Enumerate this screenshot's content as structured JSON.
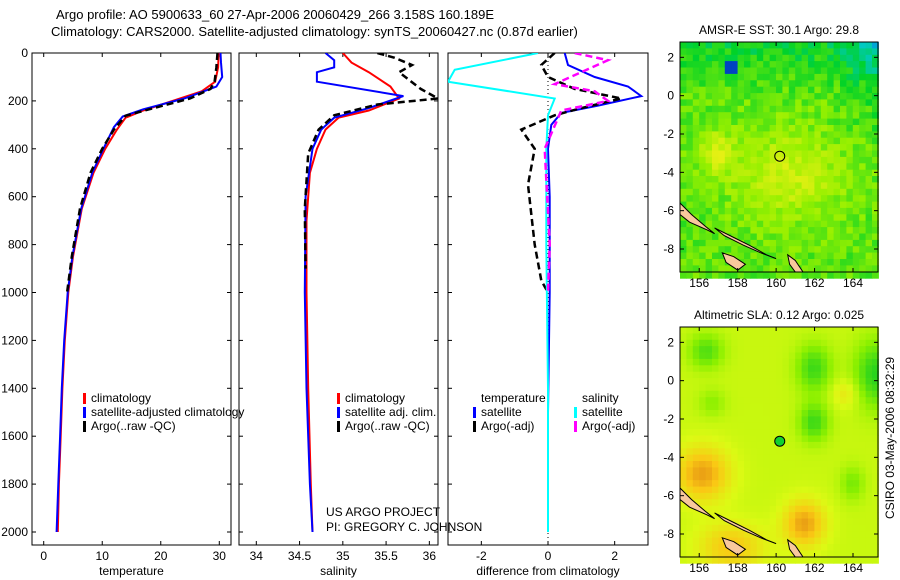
{
  "header": {
    "line1": "Argo profile: AO 5900633_60 27-Apr-2006 20060429_266 3.158S 160.189E",
    "line2": "Climatology: CARS2000. Satellite-adjusted climatology: synTS_20060427.nc (0.87d earlier)"
  },
  "credits": {
    "project": "US ARGO PROJECT",
    "pi": "PI: GREGORY C. JOHNSON",
    "stamp": "CSIRO 03-May-2006 08:32:29"
  },
  "colors": {
    "climatology": "#ff0000",
    "satellite": "#0000ff",
    "argo": "#000000",
    "sal_satellite": "#00ffff",
    "sal_argo": "#ff00ff",
    "land": "#f8c89c"
  },
  "chart_data": [
    {
      "type": "line",
      "name": "temperature-profile",
      "xlabel": "temperature",
      "ylabel": "",
      "xlim": [
        -2,
        32
      ],
      "ylim": [
        2100,
        0
      ],
      "xticks": [
        "0",
        "10",
        "20",
        "30"
      ],
      "yticks": [
        "0",
        "200",
        "400",
        "600",
        "800",
        "1000",
        "1200",
        "1400",
        "1600",
        "1800",
        "2000"
      ],
      "legend": [
        "climatology",
        "satellite-adjusted climatology",
        "Argo(..raw -QC)"
      ],
      "series": [
        {
          "name": "climatology",
          "color": "#ff0000",
          "x": [
            29.9,
            29.8,
            29.3,
            27,
            22,
            17,
            14,
            12.5,
            10.5,
            8.5,
            6.5,
            5,
            4.2,
            3.6,
            3.2,
            2.9,
            2.6,
            2.4
          ],
          "y": [
            0,
            60,
            120,
            160,
            200,
            240,
            270,
            320,
            400,
            500,
            650,
            850,
            1000,
            1200,
            1400,
            1600,
            1800,
            2000
          ]
        },
        {
          "name": "satellite-adjusted climatology",
          "color": "#0000ff",
          "x": [
            30.2,
            30.3,
            30.5,
            29.5,
            24,
            17,
            13.5,
            12,
            10.2,
            8.3,
            6.4,
            4.9,
            4.1,
            3.5,
            3.1,
            2.8,
            2.5,
            2.2
          ],
          "y": [
            0,
            40,
            100,
            140,
            190,
            235,
            265,
            310,
            400,
            500,
            650,
            850,
            1000,
            1200,
            1400,
            1600,
            1800,
            2000
          ]
        },
        {
          "name": "Argo(..raw -QC)",
          "color": "#000000",
          "x": [
            29.7,
            29.5,
            29.2,
            28.5,
            25,
            18,
            14,
            12,
            10,
            8,
            6.2,
            4.8,
            4.0
          ],
          "y": [
            0,
            60,
            120,
            150,
            190,
            235,
            262,
            320,
            400,
            500,
            650,
            850,
            1000
          ]
        }
      ]
    },
    {
      "type": "line",
      "name": "salinity-profile",
      "xlabel": "salinity",
      "xlim": [
        33.8,
        36.1
      ],
      "ylim": [
        2100,
        0
      ],
      "xticks": [
        "34",
        "34.5",
        "35",
        "35.5",
        "36"
      ],
      "legend": [
        "climatology",
        "satellite adj. clim.",
        "Argo(..raw -QC)"
      ],
      "series": [
        {
          "name": "climatology",
          "color": "#ff0000",
          "x": [
            35.0,
            35.1,
            35.3,
            35.55,
            35.65,
            35.3,
            34.95,
            34.8,
            34.7,
            34.62,
            34.58,
            34.58,
            34.6,
            34.63,
            34.65
          ],
          "y": [
            0,
            40,
            80,
            140,
            190,
            240,
            270,
            320,
            400,
            500,
            700,
            1000,
            1400,
            1800,
            2000
          ]
        },
        {
          "name": "satellite adj. clim.",
          "color": "#0000ff",
          "x": [
            34.8,
            34.9,
            34.9,
            34.7,
            34.7,
            35.7,
            35.3,
            34.9,
            34.75,
            34.65,
            34.57,
            34.56,
            34.58,
            34.62,
            34.65
          ],
          "y": [
            0,
            30,
            60,
            80,
            120,
            180,
            230,
            270,
            320,
            400,
            600,
            1000,
            1400,
            1800,
            2000
          ]
        },
        {
          "name": "Argo(..raw -QC)",
          "color": "#000000",
          "x": [
            35.4,
            35.6,
            35.8,
            35.65,
            35.9,
            36.1,
            35.4,
            34.9,
            34.72,
            34.6,
            34.56,
            34.57
          ],
          "y": [
            0,
            20,
            50,
            80,
            150,
            190,
            215,
            260,
            320,
            420,
            650,
            900
          ]
        }
      ]
    },
    {
      "type": "line",
      "name": "difference-profile",
      "xlabel": "difference from climatology",
      "xlim": [
        -3,
        3
      ],
      "ylim": [
        2100,
        0
      ],
      "xticks": [
        "-2",
        "0",
        "2"
      ],
      "legend": {
        "temperature": {
          "heading": "temperature",
          "items": [
            "satellite",
            "Argo(-adj)"
          ]
        },
        "salinity": {
          "heading": "salinity",
          "items": [
            "satellite",
            "Argo(-adj)"
          ]
        }
      },
      "series": [
        {
          "name": "temperature satellite",
          "color": "#0000ff",
          "x": [
            0.5,
            0.6,
            1.4,
            2.4,
            2.8,
            1.5,
            0.4,
            0.1,
            0.0,
            0.05,
            0.05,
            0.0,
            0.0
          ],
          "y": [
            0,
            50,
            100,
            140,
            180,
            220,
            250,
            300,
            400,
            600,
            1000,
            1500,
            2000
          ]
        },
        {
          "name": "temperature Argo(-adj)",
          "color": "#000000",
          "x": [
            0.2,
            -0.2,
            0.0,
            0.8,
            2.2,
            1.0,
            0.2,
            -0.8,
            -0.4,
            -0.6,
            -0.4,
            -0.2,
            0.0
          ],
          "y": [
            0,
            50,
            100,
            150,
            190,
            230,
            260,
            320,
            400,
            550,
            800,
            950,
            1000
          ]
        },
        {
          "name": "salinity satellite",
          "color": "#00ffff",
          "x": [
            -0.3,
            -2.8,
            -3.0,
            0.2,
            0.0,
            -0.05,
            -0.05,
            0.0,
            0.0
          ],
          "y": [
            0,
            70,
            120,
            190,
            260,
            400,
            800,
            1400,
            2000
          ]
        },
        {
          "name": "salinity Argo(-adj)",
          "color": "#ff00ff",
          "x": [
            0.8,
            1.8,
            1.0,
            0.2,
            1.4,
            1.8,
            0.4,
            -0.1,
            0.05,
            0.0
          ],
          "y": [
            0,
            30,
            80,
            130,
            160,
            200,
            240,
            400,
            800,
            1000
          ]
        }
      ]
    },
    {
      "type": "heatmap",
      "name": "sst-map",
      "title": "AMSR-E SST: 30.1 Argo: 29.8",
      "xlim": [
        155,
        165.3
      ],
      "ylim": [
        -9.2,
        2.8
      ],
      "xticks": [
        "156",
        "158",
        "160",
        "162",
        "164"
      ],
      "yticks": [
        "2",
        "0",
        "-2",
        "-4",
        "-6",
        "-8"
      ],
      "marker": {
        "lon": 160.189,
        "lat": -3.158
      }
    },
    {
      "type": "heatmap",
      "name": "sla-map",
      "title": "Altimetric SLA: 0.12 Argo: 0.025",
      "xlim": [
        155,
        165.3
      ],
      "ylim": [
        -9.2,
        2.8
      ],
      "xticks": [
        "156",
        "158",
        "160",
        "162",
        "164"
      ],
      "yticks": [
        "2",
        "0",
        "-2",
        "-4",
        "-6",
        "-8"
      ],
      "marker": {
        "lon": 160.189,
        "lat": -3.158
      }
    }
  ]
}
